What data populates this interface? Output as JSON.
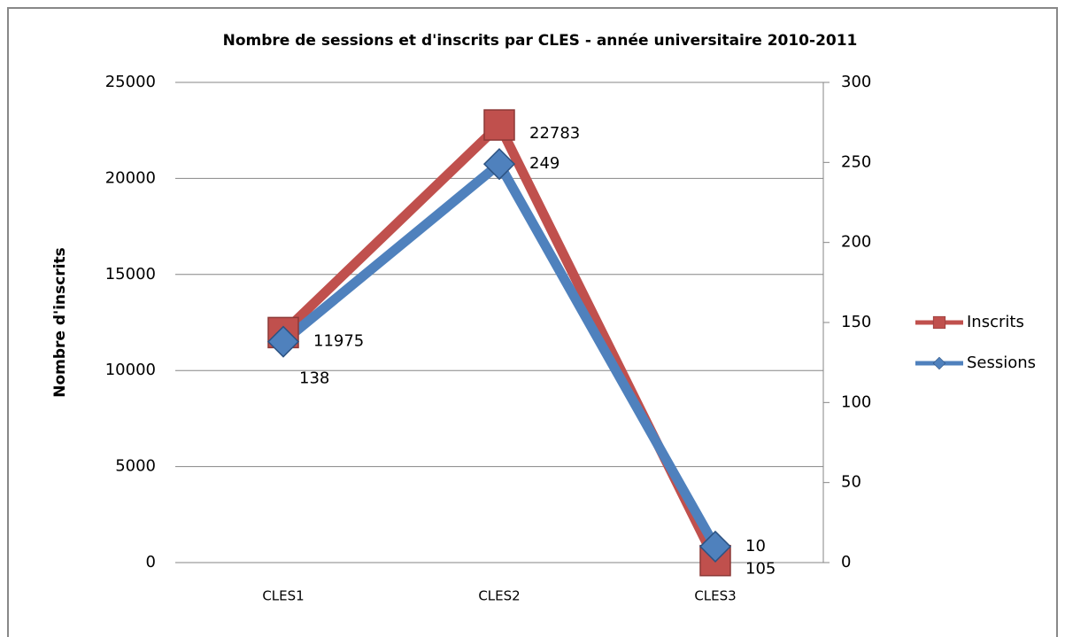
{
  "chart_data": {
    "type": "line",
    "title": "Nombre de sessions et d'inscrits par CLES - année universitaire 2010-2011",
    "ylabel": "Nombre d'inscrits",
    "categories": [
      "CLES1",
      "CLES2",
      "CLES3"
    ],
    "series": [
      {
        "name": "Inscrits",
        "color": "#c0504d",
        "label_color": "#c00000",
        "marker": "square",
        "values": [
          11975,
          22783,
          105
        ]
      },
      {
        "name": "Sessions",
        "color": "#4f81bd",
        "label_color": "#376092",
        "marker": "diamond",
        "axis": "y2",
        "values": [
          138,
          249,
          10
        ]
      }
    ],
    "ylim": [
      0,
      25000
    ],
    "yticks": [
      0,
      5000,
      10000,
      15000,
      20000,
      25000
    ],
    "y2lim": [
      0,
      300
    ],
    "y2ticks": [
      0,
      50,
      100,
      150,
      200,
      250,
      300
    ],
    "grid": true,
    "legend": "right"
  }
}
